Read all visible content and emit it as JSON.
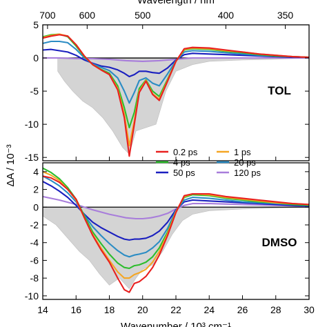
{
  "chart_data": {
    "type": "line",
    "top_axis": {
      "label": "Wavelength / nm",
      "ticks": [
        700,
        600,
        500,
        400,
        350
      ]
    },
    "x_axis": {
      "label": "Wavenumber / 10³ cm⁻¹",
      "range": [
        14,
        30
      ],
      "ticks": [
        14,
        16,
        18,
        20,
        22,
        24,
        26,
        28,
        30
      ]
    },
    "y_label": "ΔA / 10⁻³",
    "colors": {
      "0.2 ps": "#e8201f",
      "1 ps": "#f5a623",
      "4 ps": "#2dbd2d",
      "20 ps": "#2b8cc4",
      "50 ps": "#1a1fbf",
      "120 ps": "#a87ddb",
      "steady_state_fill": "#d4d4d4"
    },
    "legend": [
      {
        "name": "0.2 ps",
        "color": "#e8201f"
      },
      {
        "name": "1 ps",
        "color": "#f5a623"
      },
      {
        "name": "4 ps",
        "color": "#2dbd2d"
      },
      {
        "name": "20 ps",
        "color": "#2b8cc4"
      },
      {
        "name": "50 ps",
        "color": "#1a1fbf"
      },
      {
        "name": "120 ps",
        "color": "#a87ddb"
      }
    ],
    "panels": [
      {
        "name": "TOL",
        "ylim": [
          -15.5,
          5
        ],
        "yticks": [
          5,
          0,
          -5,
          -10,
          -15
        ],
        "steady_state": {
          "x": [
            14.9,
            15.3,
            15.8,
            16.4,
            17.0,
            17.6,
            18.2,
            18.8,
            19.2,
            19.6,
            20.2,
            20.8,
            21.4,
            22.0,
            23.0,
            24.0,
            26.0,
            28.0,
            30.0
          ],
          "y": [
            -2,
            -3.5,
            -5,
            -6.5,
            -7.5,
            -9,
            -11,
            -13.5,
            -14.5,
            -11,
            -10.5,
            -10,
            -5,
            -2,
            -1,
            -0.5,
            -0.3,
            -0.2,
            0
          ]
        },
        "series": [
          {
            "name": "0.2 ps",
            "x": [
              14.0,
              14.5,
              15.0,
              15.5,
              16.0,
              16.5,
              17.0,
              17.5,
              18.0,
              18.5,
              18.9,
              19.2,
              19.5,
              19.8,
              20.2,
              20.6,
              21.0,
              21.5,
              22.0,
              22.5,
              23.0,
              24.0,
              25.0,
              26.0,
              27.0,
              28.0,
              29.0,
              30.0
            ],
            "y": [
              3.0,
              3.3,
              3.5,
              3.3,
              2.0,
              0.3,
              -1.0,
              -1.8,
              -2.5,
              -4.8,
              -9.0,
              -14.8,
              -10.0,
              -5.2,
              -3.5,
              -5.5,
              -6.4,
              -3.5,
              -0.5,
              1.4,
              1.6,
              1.5,
              1.2,
              0.9,
              0.6,
              0.4,
              0.2,
              0.1
            ]
          },
          {
            "name": "1 ps",
            "x": [
              14.0,
              14.5,
              15.0,
              15.5,
              16.0,
              16.5,
              17.0,
              17.5,
              18.0,
              18.5,
              18.9,
              19.2,
              19.5,
              19.8,
              20.2,
              20.6,
              21.0,
              21.5,
              22.0,
              22.5,
              23.0,
              24.0,
              25.0,
              26.0,
              27.0,
              28.0,
              29.0,
              30.0
            ],
            "y": [
              3.1,
              3.4,
              3.6,
              3.3,
              2.0,
              0.3,
              -1.0,
              -1.8,
              -2.5,
              -4.6,
              -8.5,
              -13.2,
              -9.5,
              -5.0,
              -3.4,
              -5.4,
              -6.2,
              -3.4,
              -0.5,
              1.3,
              1.5,
              1.4,
              1.1,
              0.9,
              0.6,
              0.4,
              0.2,
              0.1
            ]
          },
          {
            "name": "4 ps",
            "x": [
              14.0,
              14.5,
              15.0,
              15.5,
              16.0,
              16.5,
              17.0,
              17.5,
              18.0,
              18.5,
              18.9,
              19.2,
              19.5,
              19.8,
              20.2,
              20.6,
              21.0,
              21.5,
              22.0,
              22.5,
              23.0,
              24.0,
              25.0,
              26.0,
              27.0,
              28.0,
              29.0,
              30.0
            ],
            "y": [
              3.2,
              3.5,
              3.6,
              3.2,
              1.8,
              0.2,
              -1.0,
              -1.7,
              -2.3,
              -4.2,
              -7.5,
              -10.5,
              -8.2,
              -4.6,
              -3.3,
              -5.0,
              -5.8,
              -3.2,
              -0.5,
              1.2,
              1.4,
              1.3,
              1.0,
              0.8,
              0.5,
              0.3,
              0.2,
              0.1
            ]
          },
          {
            "name": "20 ps",
            "x": [
              14.0,
              14.5,
              15.0,
              15.5,
              16.0,
              16.5,
              17.0,
              17.5,
              18.0,
              18.5,
              18.9,
              19.2,
              19.5,
              19.8,
              20.2,
              20.6,
              21.0,
              21.5,
              22.0,
              22.5,
              23.0,
              24.0,
              25.0,
              26.0,
              27.0,
              28.0,
              29.0,
              30.0
            ],
            "y": [
              2.2,
              2.5,
              2.5,
              2.3,
              1.3,
              0.0,
              -0.9,
              -1.4,
              -1.9,
              -3.0,
              -5.0,
              -6.8,
              -5.2,
              -3.4,
              -3.0,
              -3.8,
              -4.2,
              -2.4,
              -0.4,
              0.9,
              1.1,
              1.0,
              0.8,
              0.6,
              0.4,
              0.3,
              0.2,
              0.1
            ]
          },
          {
            "name": "50 ps",
            "x": [
              14.0,
              14.5,
              15.0,
              15.5,
              16.0,
              16.5,
              17.0,
              17.5,
              18.0,
              18.5,
              18.9,
              19.2,
              19.5,
              19.8,
              20.2,
              20.6,
              21.0,
              21.5,
              22.0,
              22.5,
              23.0,
              24.0,
              25.0,
              26.0,
              27.0,
              28.0,
              29.0,
              30.0
            ],
            "y": [
              1.2,
              1.3,
              1.1,
              0.9,
              0.4,
              -0.3,
              -0.8,
              -1.2,
              -1.4,
              -1.8,
              -2.3,
              -2.8,
              -2.5,
              -2.0,
              -2.0,
              -2.2,
              -2.3,
              -1.5,
              -0.3,
              0.5,
              0.7,
              0.6,
              0.5,
              0.4,
              0.3,
              0.2,
              0.1,
              0.1
            ]
          },
          {
            "name": "120 ps",
            "x": [
              14.0,
              15.0,
              16.0,
              17.0,
              18.0,
              19.0,
              20.0,
              21.0,
              22.0,
              23.0,
              24.0,
              26.0,
              28.0,
              30.0
            ],
            "y": [
              0.0,
              0.0,
              -0.1,
              -0.1,
              -0.2,
              -0.4,
              -0.5,
              -0.4,
              -0.2,
              0.0,
              0.0,
              0.0,
              0.0,
              0.0
            ]
          }
        ]
      },
      {
        "name": "DMSO",
        "ylim": [
          -10.4,
          5
        ],
        "yticks": [
          4,
          2,
          0,
          -2,
          -4,
          -6,
          -8,
          -10
        ],
        "steady_state": {
          "x": [
            14.0,
            14.8,
            15.5,
            16.2,
            16.8,
            17.4,
            18.0,
            18.6,
            19.2,
            19.6,
            20.0,
            20.6,
            21.2,
            21.8,
            22.4,
            23.0,
            24.0,
            26.0,
            28.0,
            30.0
          ],
          "y": [
            -1.0,
            -2.0,
            -3.5,
            -5.0,
            -6.0,
            -7.5,
            -8.8,
            -8.0,
            -9.2,
            -8.0,
            -7.0,
            -6.5,
            -5.0,
            -3.0,
            -1.5,
            -0.8,
            -0.4,
            -0.2,
            -0.1,
            0.0
          ]
        },
        "series": [
          {
            "name": "0.2 ps",
            "x": [
              14.0,
              14.5,
              15.0,
              15.5,
              16.0,
              16.5,
              17.0,
              17.5,
              18.0,
              18.5,
              18.9,
              19.2,
              19.5,
              19.8,
              20.2,
              20.6,
              21.0,
              21.5,
              22.0,
              22.5,
              23.0,
              24.0,
              25.0,
              26.0,
              27.0,
              28.0,
              29.0,
              30.0
            ],
            "y": [
              3.5,
              3.3,
              2.8,
              2.0,
              0.9,
              -1.2,
              -3.2,
              -4.8,
              -6.2,
              -8.0,
              -9.3,
              -9.6,
              -8.6,
              -8.4,
              -7.8,
              -6.8,
              -5.4,
              -3.2,
              -0.6,
              1.3,
              1.5,
              1.5,
              1.2,
              1.0,
              0.8,
              0.6,
              0.4,
              0.3
            ]
          },
          {
            "name": "1 ps",
            "x": [
              14.0,
              14.5,
              15.0,
              15.5,
              16.0,
              16.5,
              17.0,
              17.5,
              18.0,
              18.5,
              18.9,
              19.2,
              19.5,
              19.8,
              20.2,
              20.6,
              21.0,
              21.5,
              22.0,
              22.5,
              23.0,
              24.0,
              25.0,
              26.0,
              27.0,
              28.0,
              29.0,
              30.0
            ],
            "y": [
              4.0,
              3.6,
              3.0,
              2.0,
              0.8,
              -1.2,
              -3.1,
              -4.6,
              -6.0,
              -7.3,
              -8.0,
              -8.0,
              -7.6,
              -7.4,
              -7.0,
              -6.2,
              -5.0,
              -3.0,
              -0.5,
              1.2,
              1.5,
              1.4,
              1.1,
              0.9,
              0.7,
              0.5,
              0.4,
              0.3
            ]
          },
          {
            "name": "4 ps",
            "x": [
              14.0,
              14.5,
              15.0,
              15.5,
              16.0,
              16.5,
              17.0,
              17.5,
              18.0,
              18.5,
              18.9,
              19.2,
              19.5,
              19.8,
              20.2,
              20.6,
              21.0,
              21.5,
              22.0,
              22.5,
              23.0,
              24.0,
              25.0,
              26.0,
              27.0,
              28.0,
              29.0,
              30.0
            ],
            "y": [
              4.4,
              3.9,
              3.2,
              2.2,
              0.9,
              -1.0,
              -2.8,
              -4.1,
              -5.3,
              -6.3,
              -6.8,
              -6.9,
              -6.6,
              -6.5,
              -6.2,
              -5.6,
              -4.6,
              -2.8,
              -0.5,
              1.1,
              1.4,
              1.3,
              1.0,
              0.8,
              0.6,
              0.5,
              0.3,
              0.2
            ]
          },
          {
            "name": "20 ps",
            "x": [
              14.0,
              14.5,
              15.0,
              15.5,
              16.0,
              16.5,
              17.0,
              17.5,
              18.0,
              18.5,
              18.9,
              19.2,
              19.5,
              19.8,
              20.2,
              20.6,
              21.0,
              21.5,
              22.0,
              22.5,
              23.0,
              24.0,
              25.0,
              26.0,
              27.0,
              28.0,
              29.0,
              30.0
            ],
            "y": [
              3.5,
              3.0,
              2.4,
              1.6,
              0.6,
              -0.9,
              -2.2,
              -3.2,
              -4.1,
              -4.9,
              -5.4,
              -5.6,
              -5.4,
              -5.3,
              -5.1,
              -4.6,
              -3.9,
              -2.4,
              -0.4,
              0.8,
              1.1,
              1.0,
              0.8,
              0.6,
              0.5,
              0.4,
              0.3,
              0.2
            ]
          },
          {
            "name": "50 ps",
            "x": [
              14.0,
              14.5,
              15.0,
              15.5,
              16.0,
              16.5,
              17.0,
              17.5,
              18.0,
              18.5,
              18.9,
              19.2,
              19.5,
              19.8,
              20.2,
              20.6,
              21.0,
              21.5,
              22.0,
              22.5,
              23.0,
              24.0,
              25.0,
              26.0,
              27.0,
              28.0,
              29.0,
              30.0
            ],
            "y": [
              2.9,
              2.4,
              1.8,
              1.1,
              0.2,
              -0.8,
              -1.7,
              -2.3,
              -2.8,
              -3.3,
              -3.6,
              -3.7,
              -3.6,
              -3.6,
              -3.5,
              -3.2,
              -2.7,
              -1.7,
              -0.3,
              0.6,
              0.8,
              0.7,
              0.6,
              0.5,
              0.4,
              0.3,
              0.2,
              0.1
            ]
          },
          {
            "name": "120 ps",
            "x": [
              14.0,
              15.0,
              16.0,
              17.0,
              18.0,
              18.5,
              19.0,
              19.6,
              20.0,
              20.5,
              21.0,
              21.5,
              22.0,
              22.5,
              23.0,
              24.0,
              26.0,
              28.0,
              30.0
            ],
            "y": [
              1.2,
              0.8,
              0.3,
              -0.3,
              -0.8,
              -1.0,
              -1.2,
              -1.3,
              -1.3,
              -1.2,
              -1.0,
              -0.7,
              -0.2,
              0.2,
              0.4,
              0.4,
              0.3,
              0.2,
              0.1
            ]
          }
        ]
      }
    ]
  }
}
